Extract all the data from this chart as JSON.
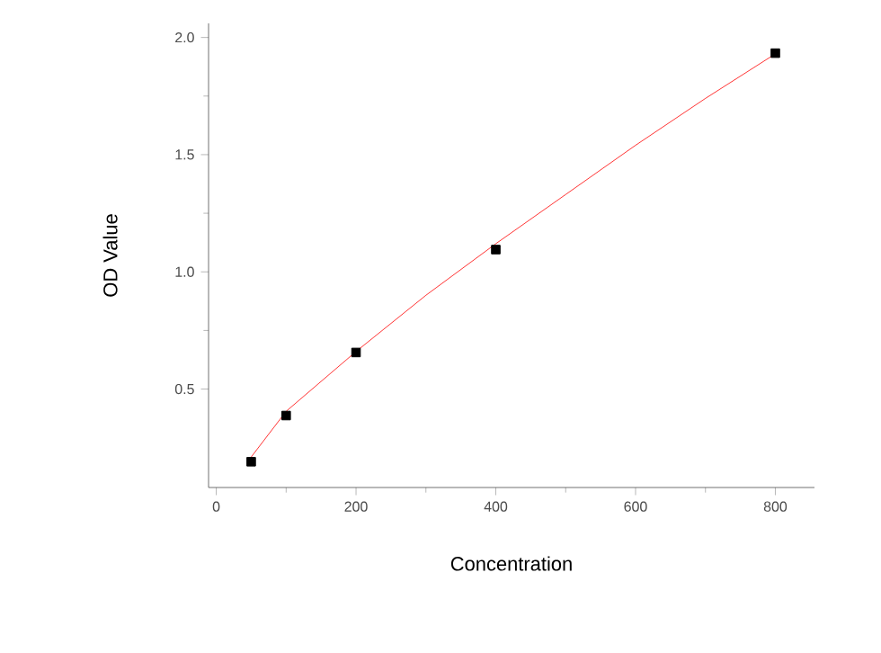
{
  "chart_data": {
    "type": "scatter",
    "xlabel": "Concentration",
    "ylabel": "OD Value",
    "series": [
      {
        "color": "#000000",
        "marker": "square",
        "x": [
          50,
          100,
          200,
          400,
          800
        ],
        "values": [
          0.19,
          0.387,
          0.656,
          1.095,
          1.933
        ]
      },
      {
        "type": "line",
        "color": "#ff0000",
        "marker": "none",
        "line_style": "solid",
        "x": [
          50,
          100,
          200,
          300,
          400,
          500,
          600,
          700,
          800
        ],
        "values": [
          0.21,
          0.405,
          0.66,
          0.9,
          1.12,
          1.33,
          1.54,
          1.74,
          1.93
        ]
      }
    ],
    "xlim": [
      -11,
      856
    ],
    "ylim": [
      0.08,
      2.06
    ],
    "xticks": [
      0,
      200,
      400,
      600,
      800
    ],
    "yticks": [
      0.5,
      {
        "value": 1,
        "label": "1.0"
      },
      1.5,
      {
        "value": 2,
        "label": "2.0"
      }
    ],
    "grid": false
  }
}
